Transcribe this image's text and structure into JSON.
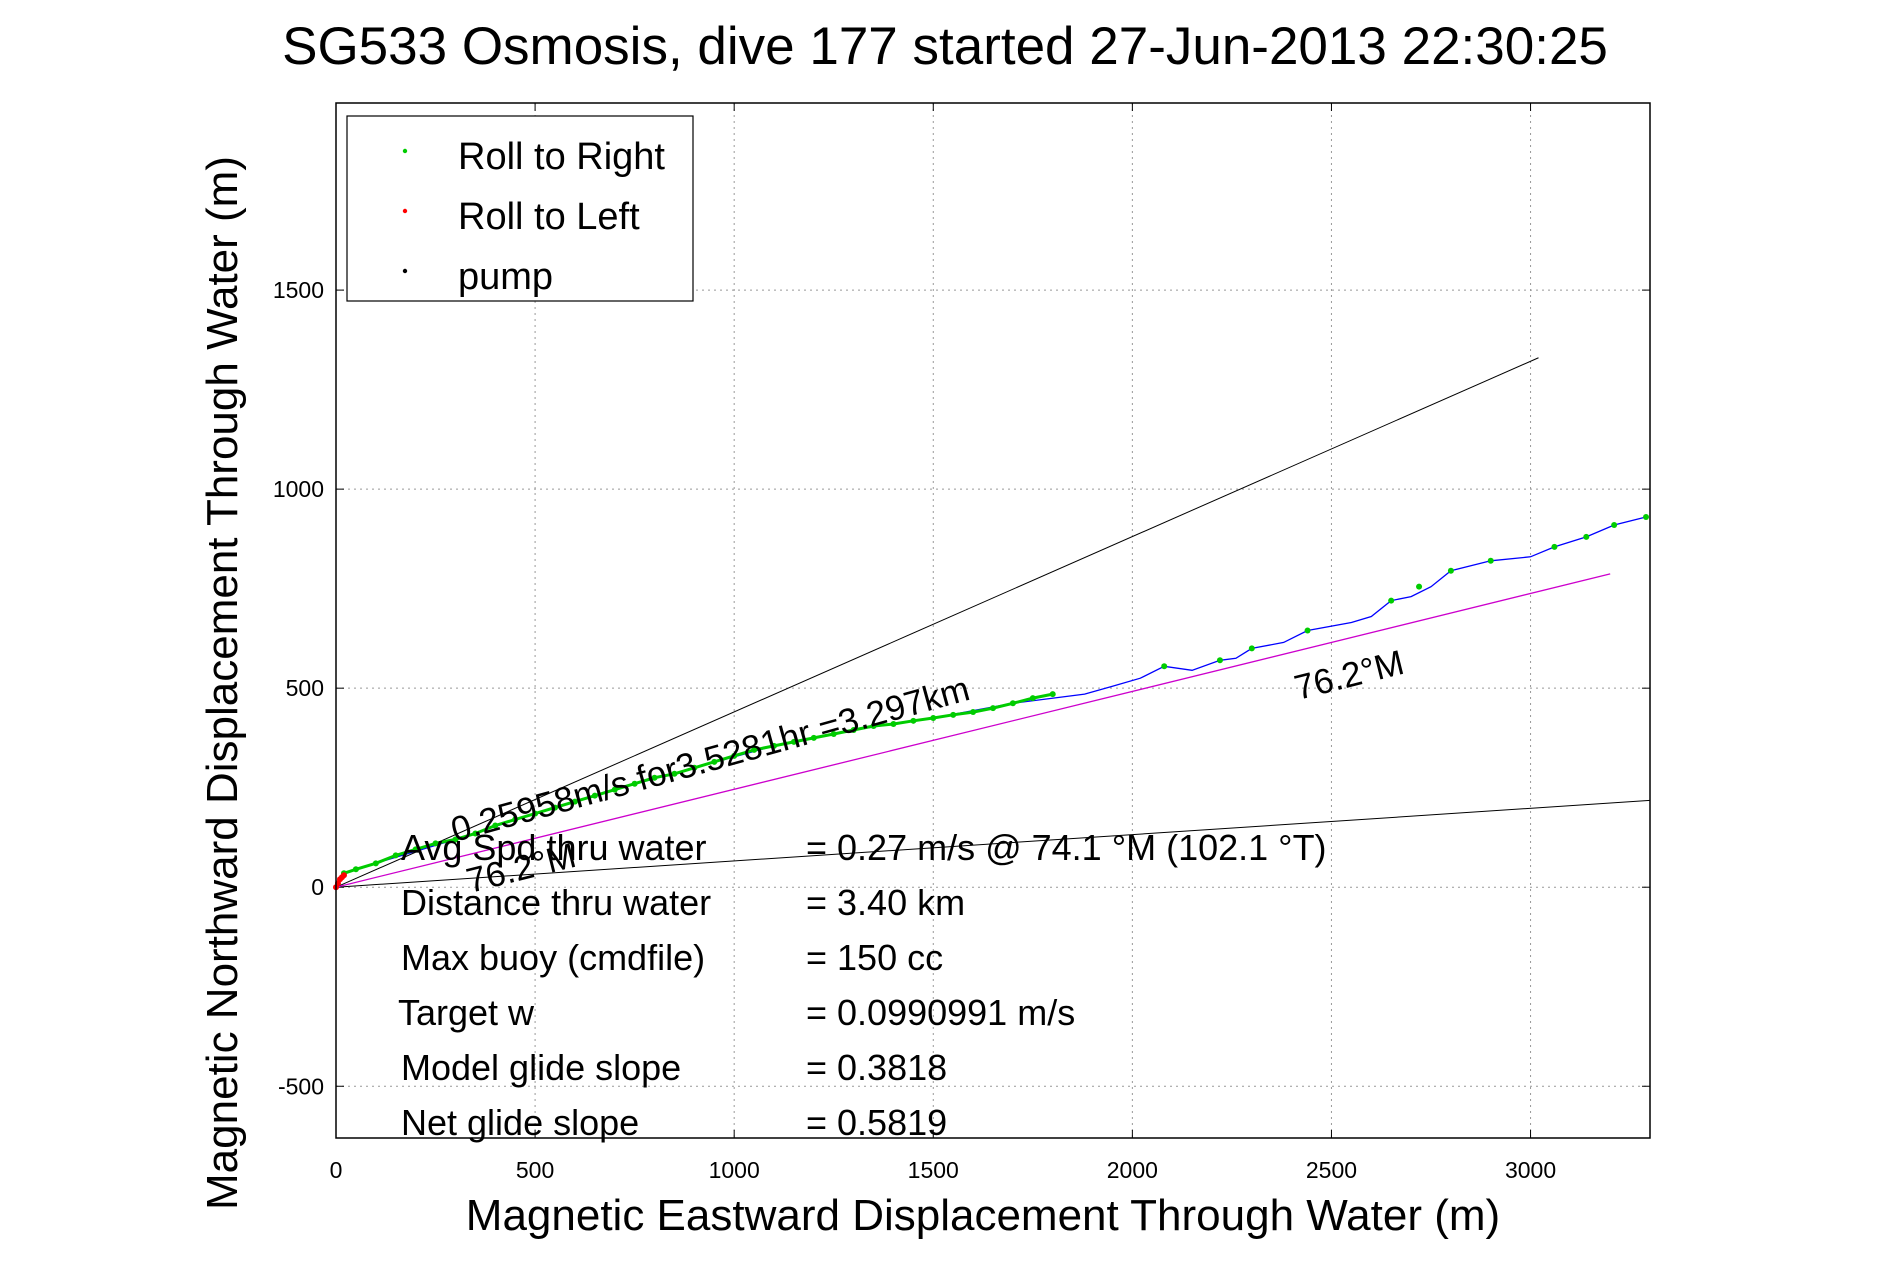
{
  "chart_data": {
    "type": "line",
    "title": "SG533 Osmosis, dive 177 started 27-Jun-2013 22:30:25",
    "xlabel": "Magnetic Eastward Displacement Through Water (m)",
    "ylabel": "Magnetic Northward Displacement Through Water (m)",
    "xlim": [
      0,
      3300
    ],
    "ylim": [
      -630,
      1970
    ],
    "xticks": [
      0,
      500,
      1000,
      1500,
      2000,
      2500,
      3000
    ],
    "yticks": [
      -500,
      0,
      500,
      1000,
      1500
    ],
    "grid": true,
    "legend": {
      "position": "top-left",
      "entries": [
        {
          "label": "Roll to Right",
          "color": "#00cc00"
        },
        {
          "label": "Roll to Left",
          "color": "#ff0000"
        },
        {
          "label": "pump",
          "color": "#000000"
        }
      ]
    },
    "series": [
      {
        "name": "Roll to Right",
        "color": "#00cc00",
        "x": [
          20,
          50,
          100,
          150,
          200,
          250,
          300,
          350,
          400,
          450,
          500,
          550,
          600,
          650,
          700,
          750,
          800,
          850,
          900,
          950,
          1000,
          1050,
          1100,
          1150,
          1200,
          1250,
          1300,
          1350,
          1400,
          1450,
          1500,
          1550,
          1600,
          1650,
          1700,
          1750,
          1800,
          2080,
          2220,
          2300,
          2440,
          2650,
          2720,
          2800,
          2900,
          3060,
          3140,
          3210,
          3290
        ],
        "y": [
          35,
          45,
          60,
          80,
          95,
          110,
          120,
          135,
          155,
          170,
          185,
          200,
          215,
          230,
          245,
          260,
          275,
          285,
          300,
          315,
          330,
          345,
          355,
          365,
          375,
          385,
          395,
          405,
          410,
          418,
          425,
          433,
          440,
          450,
          462,
          475,
          485,
          555,
          570,
          600,
          645,
          720,
          755,
          795,
          820,
          855,
          880,
          910,
          930
        ]
      },
      {
        "name": "Roll to Left",
        "color": "#ff0000",
        "x": [
          0,
          5,
          10,
          15,
          20
        ],
        "y": [
          0,
          10,
          20,
          25,
          30
        ]
      },
      {
        "name": "glider track",
        "color": "#0000ff",
        "x": [
          0,
          20,
          100,
          300,
          500,
          700,
          900,
          1100,
          1300,
          1500,
          1700,
          1880,
          1950,
          2020,
          2080,
          2150,
          2220,
          2260,
          2300,
          2380,
          2440,
          2550,
          2600,
          2650,
          2700,
          2750,
          2800,
          2860,
          2900,
          3000,
          3060,
          3140,
          3210,
          3290
        ],
        "y": [
          0,
          35,
          60,
          120,
          185,
          245,
          300,
          355,
          395,
          425,
          462,
          485,
          505,
          525,
          555,
          545,
          570,
          575,
          600,
          615,
          645,
          665,
          680,
          720,
          730,
          755,
          795,
          810,
          820,
          830,
          855,
          880,
          910,
          930
        ]
      },
      {
        "name": "heading line",
        "color": "#cc00cc",
        "x": [
          0,
          3200
        ],
        "y": [
          0,
          787
        ]
      }
    ],
    "reference_lines": [
      {
        "x": [
          0,
          3020
        ],
        "y": [
          0,
          1330
        ],
        "color": "#000000"
      },
      {
        "x": [
          0,
          3300
        ],
        "y": [
          0,
          218
        ],
        "color": "#000000"
      }
    ],
    "annotations": {
      "speed_label": "0.25958m/s for3.5281hr =3.297km",
      "heading_label_far": "76.2°M",
      "heading_label_near": "76.2°M",
      "stats": [
        {
          "label": "Avg Spd thru water",
          "value": "=  0.27 m/s @  74.1 °M (102.1 °T)"
        },
        {
          "label": "Distance thru water",
          "value": "=  3.40 km"
        },
        {
          "label": "Max buoy (cmdfile)",
          "value": "= 150 cc"
        },
        {
          "label": "Target w",
          "value": "= 0.0990991 m/s"
        },
        {
          "label": "Model glide slope",
          "value": "= 0.3818"
        },
        {
          "label": "Net glide slope",
          "value": "= 0.5819"
        }
      ]
    }
  }
}
